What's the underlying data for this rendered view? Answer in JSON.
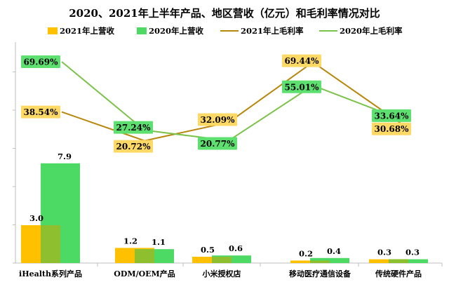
{
  "chart_data": {
    "type": "bar",
    "title": "2020、2021年上半年产品、地区营收（亿元）和毛利率情况对比",
    "categories": [
      "iHealth系列产品",
      "ODM/OEM产品",
      "小米授权店",
      "移动医疗通信设备",
      "传统硬件产品"
    ],
    "series": [
      {
        "name": "2021年上营收",
        "kind": "bar",
        "values": [
          3.0,
          1.2,
          0.5,
          0.2,
          0.3
        ],
        "labels": [
          "3.0",
          "1.2",
          "0.5",
          "0.2",
          "0.3"
        ]
      },
      {
        "name": "2020年上营收",
        "kind": "bar",
        "values": [
          7.9,
          1.1,
          0.6,
          0.4,
          0.3
        ],
        "labels": [
          "7.9",
          "1.1",
          "0.6",
          "0.4",
          "0.3"
        ]
      },
      {
        "name": "2021年上毛利率",
        "kind": "line",
        "values": [
          38.54,
          20.72,
          32.09,
          69.44,
          30.68
        ],
        "labels": [
          "38.54%",
          "20.72%",
          "32.09%",
          "69.44%",
          "30.68%"
        ]
      },
      {
        "name": "2020年上毛利率",
        "kind": "line",
        "values": [
          69.69,
          27.24,
          20.77,
          55.01,
          33.64
        ],
        "labels": [
          "69.69%",
          "27.24%",
          "20.77%",
          "55.01%",
          "33.64%"
        ]
      }
    ],
    "legend_position": "top",
    "grid": false
  },
  "colors": {
    "bar_2021": "#FFC000",
    "bar_2020": "#4CD964",
    "line_2021": "#B8860B",
    "line_2020": "#7CC24A",
    "label_2021_bg": "#FFD966",
    "label_2020_bg": "#5EE070",
    "axis": "#BFBFBF"
  }
}
